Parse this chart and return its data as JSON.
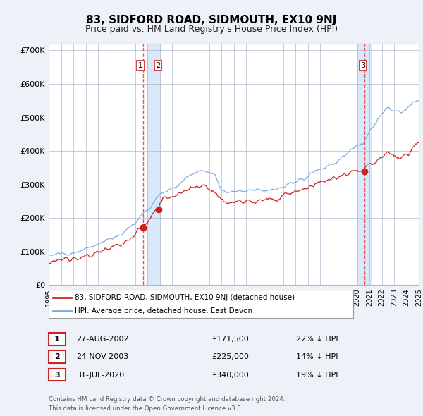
{
  "title": "83, SIDFORD ROAD, SIDMOUTH, EX10 9NJ",
  "subtitle": "Price paid vs. HM Land Registry's House Price Index (HPI)",
  "year_start": 1995,
  "year_end": 2025,
  "ylim": [
    0,
    720000
  ],
  "yticks": [
    0,
    100000,
    200000,
    300000,
    400000,
    500000,
    600000,
    700000
  ],
  "ytick_labels": [
    "£0",
    "£100K",
    "£200K",
    "£300K",
    "£400K",
    "£500K",
    "£600K",
    "£700K"
  ],
  "hpi_color": "#7aaadd",
  "price_color": "#cc2222",
  "sale1_date": 2002.65,
  "sale1_price": 171500,
  "sale1_label": "1",
  "sale1_text": "27-AUG-2002",
  "sale1_amount": "£171,500",
  "sale1_pct": "22% ↓ HPI",
  "sale2_date": 2003.9,
  "sale2_price": 225000,
  "sale2_label": "2",
  "sale2_text": "24-NOV-2003",
  "sale2_amount": "£225,000",
  "sale2_pct": "14% ↓ HPI",
  "sale3_date": 2020.58,
  "sale3_price": 340000,
  "sale3_label": "3",
  "sale3_text": "31-JUL-2020",
  "sale3_amount": "£340,000",
  "sale3_pct": "19% ↓ HPI",
  "legend_line1": "83, SIDFORD ROAD, SIDMOUTH, EX10 9NJ (detached house)",
  "legend_line2": "HPI: Average price, detached house, East Devon",
  "footnote1": "Contains HM Land Registry data © Crown copyright and database right 2024.",
  "footnote2": "This data is licensed under the Open Government Licence v3.0.",
  "bg_color": "#eef2f8",
  "plot_bg": "#ffffff",
  "grid_color": "#b0b8cc",
  "vband_color": "#d0e4f8",
  "vline_color": "#dd4444",
  "label_box_edge": "#cc2222",
  "title_fontsize": 11,
  "subtitle_fontsize": 9
}
